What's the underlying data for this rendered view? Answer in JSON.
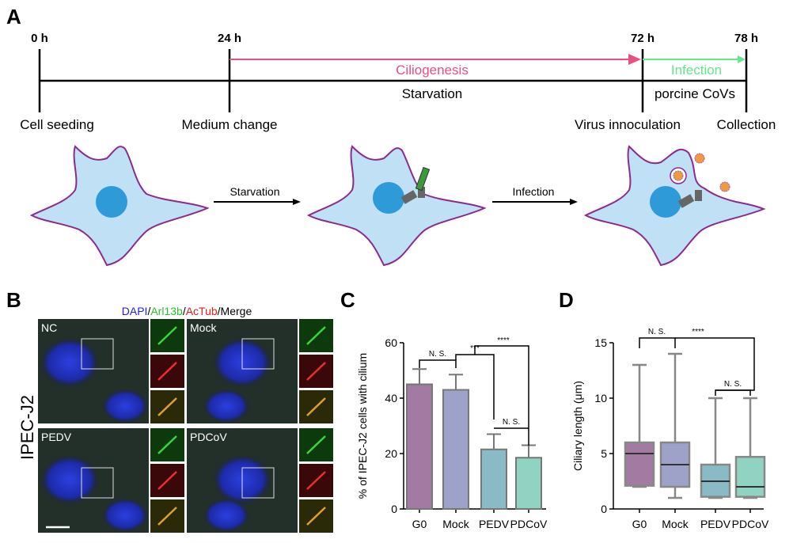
{
  "panel_labels": [
    "A",
    "B",
    "C",
    "D"
  ],
  "timeline": {
    "times": [
      "0 h",
      "24 h",
      "72 h",
      "78 h"
    ],
    "ciliogenesis": "Ciliogenesis",
    "infection": "Infection",
    "starvation": "Starvation",
    "virus": "porcine CoVs",
    "events": [
      "Cell seeding",
      "Medium change",
      "Virus innoculation",
      "Collection"
    ]
  },
  "schematic": {
    "steps": [
      "Starvation",
      "Infection"
    ]
  },
  "microscopy": {
    "stain_labels": [
      "DAPI",
      "/",
      "Arl13b",
      "/",
      "AcTub",
      "/Merge"
    ],
    "conditions": [
      "NC",
      "Mock",
      "PEDV",
      "PDCoV"
    ],
    "cell_line": "IPEC-J2"
  },
  "chart_data": [
    {
      "type": "bar",
      "y_label": "% of IPEC-J2 cells with cilium",
      "categories": [
        "G0",
        "Mock",
        "PEDV",
        "PDCoV"
      ],
      "values": [
        45,
        43,
        21.5,
        18.5
      ],
      "errors": [
        5.5,
        5.5,
        5.5,
        4.5
      ],
      "colors": [
        "#a27aa2",
        "#9ea2c9",
        "#8bbac7",
        "#90d3c3"
      ],
      "ylim": [
        0,
        60
      ],
      "yticks": [
        0,
        20,
        40,
        60
      ],
      "annotations": [
        "N. S.",
        "***",
        "****",
        "N. S."
      ]
    },
    {
      "type": "box",
      "y_label": "Ciliary length (μm)",
      "categories": [
        "G0",
        "Mock",
        "PEDV",
        "PDCoV"
      ],
      "min": [
        2,
        1,
        1,
        1
      ],
      "q1": [
        2.1,
        2,
        1.1,
        1.1
      ],
      "median": [
        5,
        4,
        2.5,
        2
      ],
      "q3": [
        6,
        6,
        4,
        4.7
      ],
      "max": [
        13,
        14,
        10,
        10
      ],
      "colors": [
        "#a27aa2",
        "#9ea2c9",
        "#8bbac7",
        "#90d3c3"
      ],
      "ylim": [
        0,
        15
      ],
      "yticks": [
        0,
        5,
        10,
        15
      ],
      "annotations": [
        "N. S.",
        "****",
        "N. S."
      ]
    }
  ]
}
